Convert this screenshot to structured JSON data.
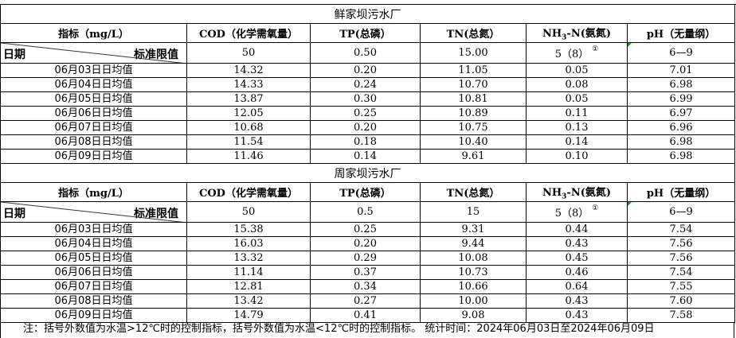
{
  "headers": {
    "indicator": "指标（mg/L）",
    "cod": "COD（化学需氧量）",
    "tp": "TP(总磷）",
    "tn": "TN(总氮）",
    "nh3_pre": "NH",
    "nh3_sub": "3",
    "nh3_post": "-N(氨氮)",
    "ph": "pH（无量纲）",
    "date": "日期",
    "standard": "标准限值",
    "footnote_mark": "①"
  },
  "plants": [
    {
      "name": "鲜家坝污水厂",
      "standards": {
        "cod": "50",
        "tp": "0.50",
        "tn": "15.00",
        "nh3": "5（8）",
        "ph": "6—9"
      },
      "rows": [
        {
          "date": "06月03日日均值",
          "cod": "14.32",
          "tp": "0.20",
          "tn": "11.05",
          "nh3": "0.05",
          "ph": "7.01"
        },
        {
          "date": "06月04日日均值",
          "cod": "14.33",
          "tp": "0.24",
          "tn": "10.70",
          "nh3": "0.08",
          "ph": "6.98"
        },
        {
          "date": "06月05日日均值",
          "cod": "13.87",
          "tp": "0.30",
          "tn": "10.81",
          "nh3": "0.05",
          "ph": "6.99"
        },
        {
          "date": "06月06日日均值",
          "cod": "12.05",
          "tp": "0.25",
          "tn": "10.89",
          "nh3": "0.11",
          "ph": "6.97"
        },
        {
          "date": "06月07日日均值",
          "cod": "10.68",
          "tp": "0.20",
          "tn": "10.75",
          "nh3": "0.13",
          "ph": "6.96"
        },
        {
          "date": "06月08日日均值",
          "cod": "11.54",
          "tp": "0.18",
          "tn": "10.40",
          "nh3": "0.14",
          "ph": "6.98"
        },
        {
          "date": "06月09日日均值",
          "cod": "11.46",
          "tp": "0.14",
          "tn": "9.61",
          "nh3": "0.10",
          "ph": "6.98"
        }
      ]
    },
    {
      "name": "周家坝污水厂",
      "standards": {
        "cod": "50",
        "tp": "0.5",
        "tn": "15",
        "nh3": "5（8）",
        "ph": "6—9"
      },
      "rows": [
        {
          "date": "06月03日日均值",
          "cod": "15.38",
          "tp": "0.25",
          "tn": "9.31",
          "nh3": "0.44",
          "ph": "7.54"
        },
        {
          "date": "06月04日日均值",
          "cod": "16.03",
          "tp": "0.20",
          "tn": "9.44",
          "nh3": "0.43",
          "ph": "7.56"
        },
        {
          "date": "06月05日日均值",
          "cod": "13.32",
          "tp": "0.29",
          "tn": "10.08",
          "nh3": "0.45",
          "ph": "7.56"
        },
        {
          "date": "06月06日日均值",
          "cod": "11.14",
          "tp": "0.37",
          "tn": "10.73",
          "nh3": "0.46",
          "ph": "7.54"
        },
        {
          "date": "06月07日日均值",
          "cod": "12.81",
          "tp": "0.34",
          "tn": "10.66",
          "nh3": "0.64",
          "ph": "7.55"
        },
        {
          "date": "06月08日日均值",
          "cod": "13.42",
          "tp": "0.27",
          "tn": "10.00",
          "nh3": "0.43",
          "ph": "7.60"
        },
        {
          "date": "06月09日日均值",
          "cod": "14.79",
          "tp": "0.41",
          "tn": "9.08",
          "nh3": "0.43",
          "ph": "7.58"
        }
      ]
    }
  ],
  "note": "注：括号外数值为水温>12℃时的控制指标，括号外数值为水温<12℃时的控制指标。   统计时间：2024年06月03日至2024年06月09日",
  "colors": {
    "cell_marker": "#1a8a2a"
  }
}
